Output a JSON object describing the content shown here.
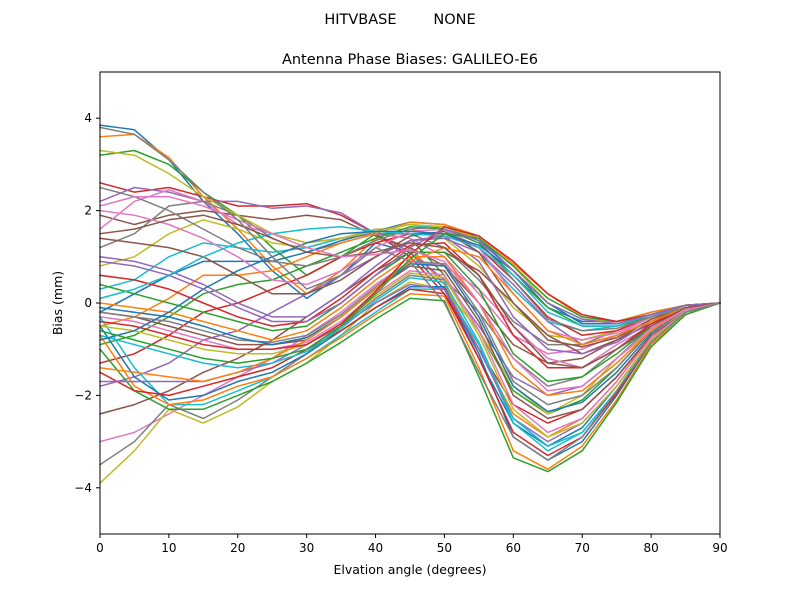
{
  "chart_data": {
    "type": "line",
    "suptitle": "HITVBASE        NONE",
    "title": "Antenna Phase Biases: GALILEO-E6",
    "xlabel": "Elvation angle (degrees)",
    "ylabel": "Bias (mm)",
    "xlim": [
      0,
      90
    ],
    "ylim": [
      -5,
      5
    ],
    "xticks": [
      0,
      10,
      20,
      30,
      40,
      50,
      60,
      70,
      80,
      90
    ],
    "yticks": [
      -4,
      -2,
      0,
      2,
      4
    ],
    "grid": false,
    "legend": "none",
    "x": [
      0,
      5,
      10,
      15,
      20,
      25,
      30,
      35,
      40,
      45,
      50,
      55,
      60,
      65,
      70,
      75,
      80,
      85,
      90
    ],
    "palette": [
      "#1f77b4",
      "#ff7f0e",
      "#2ca02c",
      "#d62728",
      "#9467bd",
      "#8c564b",
      "#e377c2",
      "#7f7f7f",
      "#bcbd22",
      "#17becf"
    ],
    "series": [
      {
        "values": [
          3.85,
          3.75,
          3.1,
          2.2,
          1.5,
          0.7,
          0.1,
          0.6,
          1.3,
          1.1,
          0.3,
          -1.2,
          -2.6,
          -3.1,
          -2.7,
          -1.8,
          -0.8,
          -0.2,
          0.0
        ]
      },
      {
        "values": [
          3.6,
          3.65,
          3.15,
          2.3,
          1.6,
          0.8,
          0.2,
          0.7,
          1.4,
          1.2,
          0.4,
          -1.0,
          -2.4,
          -2.9,
          -2.5,
          -1.7,
          -0.7,
          -0.2,
          0.0
        ]
      },
      {
        "values": [
          3.2,
          3.3,
          3.0,
          2.4,
          1.9,
          1.2,
          0.6,
          1.0,
          1.5,
          1.4,
          0.6,
          -0.6,
          -1.9,
          -2.4,
          -2.1,
          -1.4,
          -0.6,
          -0.15,
          0.0
        ]
      },
      {
        "values": [
          2.6,
          2.4,
          2.5,
          2.3,
          2.1,
          2.1,
          2.15,
          1.9,
          1.5,
          1.0,
          0.2,
          -1.0,
          -2.2,
          -2.6,
          -2.3,
          -1.6,
          -0.7,
          -0.2,
          0.0
        ]
      },
      {
        "values": [
          2.2,
          2.5,
          2.4,
          2.2,
          2.2,
          2.05,
          2.1,
          1.95,
          1.5,
          1.1,
          0.5,
          -0.5,
          -1.6,
          -2.0,
          -1.8,
          -1.2,
          -0.5,
          -0.1,
          0.0
        ]
      },
      {
        "values": [
          1.9,
          1.7,
          1.9,
          2.0,
          1.9,
          1.8,
          1.9,
          1.8,
          1.45,
          1.2,
          0.8,
          0.0,
          -0.9,
          -1.3,
          -1.2,
          -0.8,
          -0.35,
          -0.1,
          0.0
        ]
      },
      {
        "values": [
          1.6,
          2.2,
          2.45,
          2.2,
          1.7,
          1.5,
          1.3,
          1.4,
          1.5,
          1.4,
          1.0,
          0.2,
          -0.7,
          -1.1,
          -1.0,
          -0.7,
          -0.3,
          -0.1,
          0.0
        ]
      },
      {
        "values": [
          1.2,
          1.5,
          2.1,
          2.2,
          1.9,
          1.4,
          1.1,
          1.3,
          1.5,
          1.5,
          1.2,
          0.5,
          -0.4,
          -0.9,
          -0.9,
          -0.6,
          -0.3,
          -0.1,
          0.0
        ]
      },
      {
        "values": [
          0.8,
          1.0,
          1.5,
          1.8,
          1.6,
          1.3,
          1.2,
          1.4,
          1.6,
          1.6,
          1.4,
          0.8,
          -0.1,
          -0.7,
          -0.8,
          -0.6,
          -0.3,
          -0.1,
          0.0
        ]
      },
      {
        "values": [
          0.3,
          0.5,
          1.0,
          1.3,
          1.2,
          1.1,
          1.2,
          1.4,
          1.55,
          1.7,
          1.6,
          1.1,
          0.3,
          -0.4,
          -0.6,
          -0.5,
          -0.25,
          -0.1,
          0.0
        ]
      },
      {
        "values": [
          -0.2,
          0.2,
          0.6,
          0.9,
          0.9,
          0.9,
          1.1,
          1.35,
          1.55,
          1.75,
          1.7,
          1.4,
          0.7,
          -0.1,
          -0.4,
          -0.4,
          -0.2,
          -0.05,
          0.0
        ]
      },
      {
        "values": [
          -0.5,
          -0.3,
          0.1,
          0.6,
          0.6,
          0.7,
          1.0,
          1.3,
          1.5,
          1.75,
          1.7,
          1.45,
          0.85,
          0.2,
          -0.3,
          -0.4,
          -0.2,
          -0.05,
          0.0
        ]
      },
      {
        "values": [
          -0.9,
          -0.7,
          -0.3,
          0.2,
          0.4,
          0.5,
          0.8,
          1.1,
          1.4,
          1.65,
          1.6,
          1.3,
          0.6,
          -0.1,
          -0.5,
          -0.5,
          -0.3,
          -0.1,
          0.0
        ]
      },
      {
        "values": [
          -1.3,
          -1.1,
          -0.7,
          -0.2,
          0.0,
          0.3,
          0.6,
          1.0,
          1.3,
          1.5,
          1.5,
          1.2,
          0.5,
          -0.3,
          -0.7,
          -0.6,
          -0.3,
          -0.1,
          0.0
        ]
      },
      {
        "values": [
          -1.8,
          -1.6,
          -1.3,
          -0.8,
          -0.6,
          -0.2,
          0.2,
          0.6,
          1.0,
          1.35,
          1.4,
          1.1,
          0.4,
          -0.4,
          -0.9,
          -0.7,
          -0.4,
          -0.1,
          0.0
        ]
      },
      {
        "values": [
          -2.4,
          -2.2,
          -1.9,
          -1.5,
          -1.2,
          -0.8,
          -0.3,
          0.2,
          0.7,
          1.1,
          1.1,
          0.7,
          0.0,
          -0.7,
          -1.1,
          -0.8,
          -0.45,
          -0.1,
          0.0
        ]
      },
      {
        "values": [
          -3.0,
          -2.8,
          -2.4,
          -2.0,
          -1.6,
          -1.2,
          -0.7,
          -0.2,
          0.4,
          0.9,
          0.8,
          0.3,
          -0.5,
          -1.2,
          -1.4,
          -0.9,
          -0.5,
          -0.15,
          0.0
        ]
      },
      {
        "values": [
          -3.5,
          -3.0,
          -2.2,
          -2.5,
          -2.1,
          -1.6,
          -1.1,
          -0.5,
          0.1,
          0.6,
          0.5,
          -0.2,
          -1.2,
          -1.8,
          -1.6,
          -1.0,
          -0.55,
          -0.15,
          0.0
        ]
      },
      {
        "values": [
          -3.9,
          -3.2,
          -2.3,
          -2.6,
          -2.25,
          -1.7,
          -1.3,
          -0.7,
          0.0,
          0.45,
          0.3,
          -0.6,
          -1.8,
          -2.4,
          -2.0,
          -1.2,
          -0.6,
          -0.15,
          0.0
        ]
      },
      {
        "values": [
          -0.3,
          -1.4,
          -2.2,
          -2.2,
          -1.9,
          -1.6,
          -1.2,
          -0.7,
          -0.2,
          0.3,
          0.3,
          -0.9,
          -2.6,
          -3.2,
          -2.8,
          -1.9,
          -0.8,
          -0.2,
          0.0
        ]
      },
      {
        "values": [
          -0.5,
          -1.6,
          -2.1,
          -2.0,
          -1.7,
          -1.5,
          -1.1,
          -0.6,
          -0.1,
          0.35,
          0.35,
          -1.1,
          -2.9,
          -3.4,
          -3.0,
          -2.0,
          -0.85,
          -0.2,
          0.0
        ]
      },
      {
        "values": [
          -0.7,
          -1.8,
          -2.2,
          -2.1,
          -1.8,
          -1.6,
          -1.2,
          -0.75,
          -0.25,
          0.2,
          0.15,
          -1.4,
          -3.2,
          -3.6,
          -3.1,
          -2.1,
          -0.9,
          -0.25,
          0.0
        ]
      },
      {
        "values": [
          -1.0,
          -1.9,
          -2.3,
          -2.3,
          -2.0,
          -1.7,
          -1.3,
          -0.85,
          -0.35,
          0.1,
          0.05,
          -1.6,
          -3.35,
          -3.65,
          -3.2,
          -2.15,
          -0.95,
          -0.25,
          0.0
        ]
      },
      {
        "values": [
          -1.5,
          -1.9,
          -2.0,
          -1.8,
          -1.6,
          -1.4,
          -1.0,
          -0.6,
          -0.1,
          0.3,
          0.2,
          -1.2,
          -2.8,
          -3.3,
          -2.9,
          -1.95,
          -0.85,
          -0.2,
          0.0
        ]
      },
      {
        "values": [
          -1.7,
          -1.7,
          -1.7,
          -1.7,
          -1.5,
          -1.3,
          -0.9,
          -0.5,
          0.0,
          0.4,
          0.3,
          -1.0,
          -2.5,
          -3.0,
          -2.6,
          -1.8,
          -0.8,
          -0.2,
          0.0
        ]
      },
      {
        "values": [
          -0.2,
          -0.3,
          -0.5,
          -0.7,
          -0.9,
          -0.9,
          -0.8,
          -0.3,
          0.3,
          0.8,
          0.7,
          -0.4,
          -2.0,
          -2.5,
          -2.3,
          -1.6,
          -0.7,
          -0.2,
          0.0
        ]
      },
      {
        "values": [
          -0.3,
          -0.4,
          -0.6,
          -0.8,
          -1.0,
          -1.0,
          -0.85,
          -0.4,
          0.2,
          0.7,
          0.6,
          -0.6,
          -2.2,
          -2.8,
          -2.5,
          -1.7,
          -0.75,
          -0.2,
          0.0
        ]
      },
      {
        "values": [
          -0.2,
          -0.3,
          -0.4,
          -0.6,
          -0.8,
          -0.85,
          -0.7,
          -0.25,
          0.35,
          0.9,
          0.85,
          -0.2,
          -1.7,
          -2.2,
          -2.0,
          -1.4,
          -0.6,
          -0.15,
          0.0
        ]
      },
      {
        "values": [
          -0.5,
          -0.6,
          -0.8,
          -1.0,
          -1.1,
          -1.1,
          -0.9,
          -0.45,
          0.15,
          0.65,
          0.55,
          -0.7,
          -2.3,
          -2.9,
          -2.6,
          -1.8,
          -0.8,
          -0.2,
          0.0
        ]
      },
      {
        "values": [
          -0.7,
          -0.9,
          -1.1,
          -1.3,
          -1.4,
          -1.3,
          -1.05,
          -0.55,
          0.05,
          0.55,
          0.45,
          -0.85,
          -2.5,
          -3.1,
          -2.8,
          -1.9,
          -0.85,
          -0.2,
          0.0
        ]
      },
      {
        "values": [
          -0.1,
          -0.2,
          -0.3,
          -0.5,
          -0.75,
          -0.9,
          -0.75,
          -0.3,
          0.3,
          0.85,
          0.8,
          -0.3,
          -1.8,
          -2.35,
          -2.15,
          -1.5,
          -0.65,
          -0.15,
          0.0
        ]
      },
      {
        "values": [
          0.0,
          -0.1,
          -0.2,
          -0.4,
          -0.6,
          -0.8,
          -0.6,
          -0.1,
          0.5,
          1.0,
          1.0,
          0.0,
          -1.4,
          -2.0,
          -1.9,
          -1.3,
          -0.6,
          -0.15,
          0.0
        ]
      },
      {
        "values": [
          0.4,
          0.2,
          0.0,
          -0.2,
          -0.4,
          -0.6,
          -0.5,
          0.0,
          0.6,
          1.1,
          1.1,
          0.3,
          -1.1,
          -1.7,
          -1.6,
          -1.1,
          -0.5,
          -0.1,
          0.0
        ]
      },
      {
        "values": [
          0.6,
          0.5,
          0.3,
          0.0,
          -0.3,
          -0.5,
          -0.4,
          0.1,
          0.7,
          1.25,
          1.3,
          0.6,
          -0.7,
          -1.4,
          -1.4,
          -1.0,
          -0.45,
          -0.1,
          0.0
        ]
      },
      {
        "values": [
          1.0,
          0.9,
          0.7,
          0.4,
          0.0,
          -0.3,
          -0.3,
          0.2,
          0.8,
          1.35,
          1.45,
          0.9,
          -0.3,
          -1.0,
          -1.1,
          -0.85,
          -0.4,
          -0.1,
          0.0
        ]
      },
      {
        "values": [
          1.4,
          1.3,
          1.2,
          1.0,
          0.6,
          0.2,
          0.2,
          0.5,
          1.0,
          1.45,
          1.55,
          1.1,
          0.0,
          -0.8,
          -0.95,
          -0.75,
          -0.35,
          -0.1,
          0.0
        ]
      },
      {
        "values": [
          2.0,
          1.9,
          1.7,
          1.4,
          1.0,
          0.5,
          0.4,
          0.7,
          1.2,
          1.55,
          1.6,
          1.2,
          0.2,
          -0.6,
          -0.8,
          -0.65,
          -0.3,
          -0.1,
          0.0
        ]
      },
      {
        "values": [
          2.5,
          2.3,
          2.0,
          1.6,
          1.2,
          0.9,
          0.8,
          1.0,
          1.35,
          1.6,
          1.65,
          1.35,
          0.5,
          -0.35,
          -0.6,
          -0.55,
          -0.3,
          -0.1,
          0.0
        ]
      },
      {
        "values": [
          3.3,
          3.2,
          2.8,
          2.3,
          1.9,
          1.5,
          1.3,
          1.4,
          1.55,
          1.7,
          1.65,
          1.4,
          0.8,
          0.0,
          -0.35,
          -0.4,
          -0.25,
          -0.05,
          0.0
        ]
      },
      {
        "values": [
          0.1,
          0.3,
          0.6,
          1.0,
          1.3,
          1.5,
          1.6,
          1.65,
          1.55,
          1.5,
          1.45,
          1.2,
          0.6,
          -0.2,
          -0.5,
          -0.5,
          -0.25,
          -0.05,
          0.0
        ]
      },
      {
        "values": [
          -0.8,
          -0.6,
          -0.2,
          0.3,
          0.7,
          1.0,
          1.3,
          1.5,
          1.55,
          1.55,
          1.5,
          1.25,
          0.7,
          0.0,
          -0.45,
          -0.45,
          -0.25,
          -0.05,
          0.0
        ]
      },
      {
        "values": [
          -1.4,
          -1.5,
          -1.6,
          -1.7,
          -1.5,
          -1.2,
          -0.8,
          -0.3,
          0.3,
          0.9,
          1.2,
          1.0,
          0.2,
          -0.6,
          -0.9,
          -0.7,
          -0.4,
          -0.1,
          0.0
        ]
      },
      {
        "values": [
          -0.6,
          -0.8,
          -1.0,
          -1.2,
          -1.3,
          -1.2,
          -1.0,
          -0.5,
          0.2,
          0.95,
          1.5,
          1.4,
          0.8,
          0.1,
          -0.3,
          -0.4,
          -0.25,
          -0.05,
          0.0
        ]
      },
      {
        "values": [
          -0.4,
          -0.5,
          -0.7,
          -0.9,
          -1.0,
          -1.0,
          -0.9,
          -0.45,
          0.25,
          1.05,
          1.65,
          1.45,
          0.9,
          0.2,
          -0.25,
          -0.4,
          -0.25,
          -0.05,
          0.0
        ]
      },
      {
        "values": [
          0.9,
          0.8,
          0.6,
          0.3,
          -0.1,
          -0.4,
          -0.4,
          0.0,
          0.6,
          1.2,
          1.6,
          1.35,
          0.7,
          0.0,
          -0.35,
          -0.45,
          -0.25,
          -0.05,
          0.0
        ]
      },
      {
        "values": [
          1.5,
          1.6,
          1.8,
          1.9,
          1.7,
          1.4,
          1.1,
          1.0,
          1.1,
          1.3,
          1.2,
          0.6,
          -0.5,
          -1.3,
          -1.4,
          -1.0,
          -0.5,
          -0.1,
          0.0
        ]
      },
      {
        "values": [
          2.1,
          2.3,
          2.3,
          2.1,
          1.8,
          1.5,
          1.2,
          1.0,
          1.05,
          1.15,
          0.9,
          0.0,
          -1.2,
          -1.9,
          -1.8,
          -1.2,
          -0.55,
          -0.15,
          0.0
        ]
      },
      {
        "values": [
          3.8,
          3.65,
          3.1,
          2.4,
          1.8,
          1.0,
          0.3,
          0.6,
          1.2,
          0.9,
          0.0,
          -1.5,
          -2.9,
          -3.4,
          -2.9,
          -1.9,
          -0.85,
          -0.2,
          0.0
        ]
      }
    ]
  }
}
